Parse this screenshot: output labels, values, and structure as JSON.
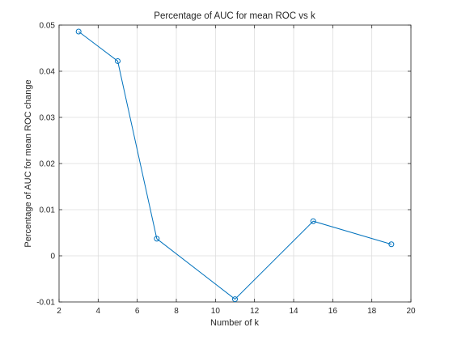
{
  "chart_data": {
    "type": "line",
    "title": "Percentage of AUC for mean ROC vs k",
    "xlabel": "Number of k",
    "ylabel": "Percentage of AUC for mean ROC change",
    "xlim": [
      2,
      20
    ],
    "ylim": [
      -0.01,
      0.05
    ],
    "xticks": [
      2,
      4,
      6,
      8,
      10,
      12,
      14,
      16,
      18,
      20
    ],
    "xtick_labels": [
      "2",
      "4",
      "6",
      "8",
      "10",
      "12",
      "14",
      "16",
      "18",
      "20"
    ],
    "yticks": [
      -0.01,
      0,
      0.01,
      0.02,
      0.03,
      0.04,
      0.05
    ],
    "ytick_labels": [
      "-0.01",
      "0",
      "0.01",
      "0.02",
      "0.03",
      "0.04",
      "0.05"
    ],
    "grid": true,
    "series": [
      {
        "x": [
          3,
          5,
          7,
          11,
          15,
          19
        ],
        "y": [
          0.0486,
          0.0422,
          0.0037,
          -0.0094,
          0.0075,
          0.0025
        ],
        "color": "#0072BD",
        "marker": "circle"
      }
    ]
  }
}
